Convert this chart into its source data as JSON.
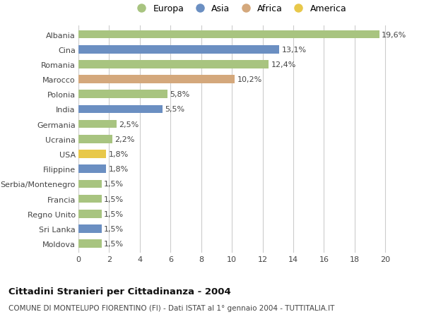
{
  "countries": [
    "Albania",
    "Cina",
    "Romania",
    "Marocco",
    "Polonia",
    "India",
    "Germania",
    "Ucraina",
    "USA",
    "Filippine",
    "Serbia/Montenegro",
    "Francia",
    "Regno Unito",
    "Sri Lanka",
    "Moldova"
  ],
  "values": [
    19.6,
    13.1,
    12.4,
    10.2,
    5.8,
    5.5,
    2.5,
    2.2,
    1.8,
    1.8,
    1.5,
    1.5,
    1.5,
    1.5,
    1.5
  ],
  "labels": [
    "19,6%",
    "13,1%",
    "12,4%",
    "10,2%",
    "5,8%",
    "5,5%",
    "2,5%",
    "2,2%",
    "1,8%",
    "1,8%",
    "1,5%",
    "1,5%",
    "1,5%",
    "1,5%",
    "1,5%"
  ],
  "continents": [
    "Europa",
    "Asia",
    "Europa",
    "Africa",
    "Europa",
    "Asia",
    "Europa",
    "Europa",
    "America",
    "Asia",
    "Europa",
    "Europa",
    "Europa",
    "Asia",
    "Europa"
  ],
  "continent_colors": {
    "Europa": "#a8c480",
    "Asia": "#6b8fc2",
    "Africa": "#d4a87c",
    "America": "#e8c84a"
  },
  "legend_order": [
    "Europa",
    "Asia",
    "Africa",
    "America"
  ],
  "title": "Cittadini Stranieri per Cittadinanza - 2004",
  "subtitle": "COMUNE DI MONTELUPO FIORENTINO (FI) - Dati ISTAT al 1° gennaio 2004 - TUTTITALIA.IT",
  "xlim": [
    0,
    21
  ],
  "xticks": [
    0,
    2,
    4,
    6,
    8,
    10,
    12,
    14,
    16,
    18,
    20
  ],
  "bg_color": "#ffffff",
  "grid_color": "#cccccc",
  "bar_height": 0.55,
  "label_fontsize": 8,
  "tick_fontsize": 8,
  "title_fontsize": 9.5,
  "subtitle_fontsize": 7.5,
  "legend_fontsize": 9
}
